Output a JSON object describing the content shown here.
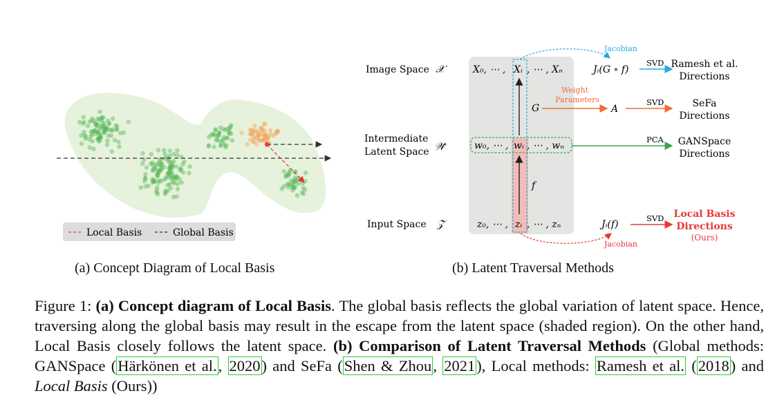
{
  "panel_a": {
    "legend": {
      "local": "Local Basis",
      "global": "Global Basis"
    },
    "caption": "(a) Concept Diagram of Local Basis",
    "colors": {
      "green": "#5cb85c",
      "orange": "#f5a55a",
      "local_arrow": "#e53935",
      "global_arrow": "#333333",
      "region": "#e6f2dc"
    }
  },
  "panel_b": {
    "caption": "(b) Latent Traversal Methods",
    "rows": {
      "image": {
        "label": "Image Space",
        "symbol": "𝒳",
        "seq": [
          "X₀, ⋯ ,",
          "Xᵢ",
          ", ⋯ , Xₙ"
        ]
      },
      "intermediate": {
        "label1": "Intermediate",
        "label2": "Latent Space",
        "symbol": "𝒲̃",
        "seq": [
          "w₀, ⋯ ,",
          "wᵢ",
          ", ⋯ , wₙ"
        ]
      },
      "input": {
        "label": "Input Space",
        "symbol": "𝒵",
        "seq": [
          "z₀, ⋯ ,",
          "zᵢ",
          ", ⋯ , zₙ"
        ]
      }
    },
    "maps": {
      "G": "G",
      "f": "f",
      "A": "A",
      "jacobian_top": "Jᵢ(G ∘ f)",
      "jacobian_bottom": "Jᵢ(f)"
    },
    "annotations": {
      "jacobian1": "Jacobian",
      "jacobian2": "Jacobian",
      "weight1": "Weight",
      "weight2": "Parameters"
    },
    "methods": [
      {
        "op": "SVD",
        "line1": "Ramesh et al.",
        "line2": "Directions"
      },
      {
        "op": "SVD",
        "line1": "SeFa",
        "line2": "Directions"
      },
      {
        "op": "PCA",
        "line1": "GANSpace",
        "line2": "Directions"
      },
      {
        "op": "SVD",
        "line1": "Local Basis",
        "line2": "Directions",
        "line3": "(Ours)"
      }
    ],
    "colors": {
      "blue": "#29a9e0",
      "orange": "#f26a3c",
      "green": "#3aa64a",
      "red": "#e53935",
      "panel": "#e3e5e3"
    }
  },
  "caption": {
    "fig": "Figure 1:",
    "a_bold": "(a) Concept diagram of Local Basis",
    "a_text": ". The global basis reflects the global variation of latent space. Hence, traversing along the global basis may result in the escape from the latent space (shaded region). On the other hand, Local Basis closely follows the latent space.",
    "b_bold": "(b) Comparison of Latent Traversal Methods",
    "b_text1": " (Global methods: GANSpace (",
    "cite1": "Härkönen et al.",
    "sep1": ", ",
    "cite1y": "2020",
    "b_text2": ") and SeFa (",
    "cite2": "Shen & Zhou",
    "sep2": ", ",
    "cite2y": "2021",
    "b_text3": "), Local methods: ",
    "cite3": "Ramesh et al.",
    "sep3": " (",
    "cite3y": "2018",
    "b_text4": ") and ",
    "local_italic": "Local Basis",
    "b_text5": " (Ours))"
  }
}
